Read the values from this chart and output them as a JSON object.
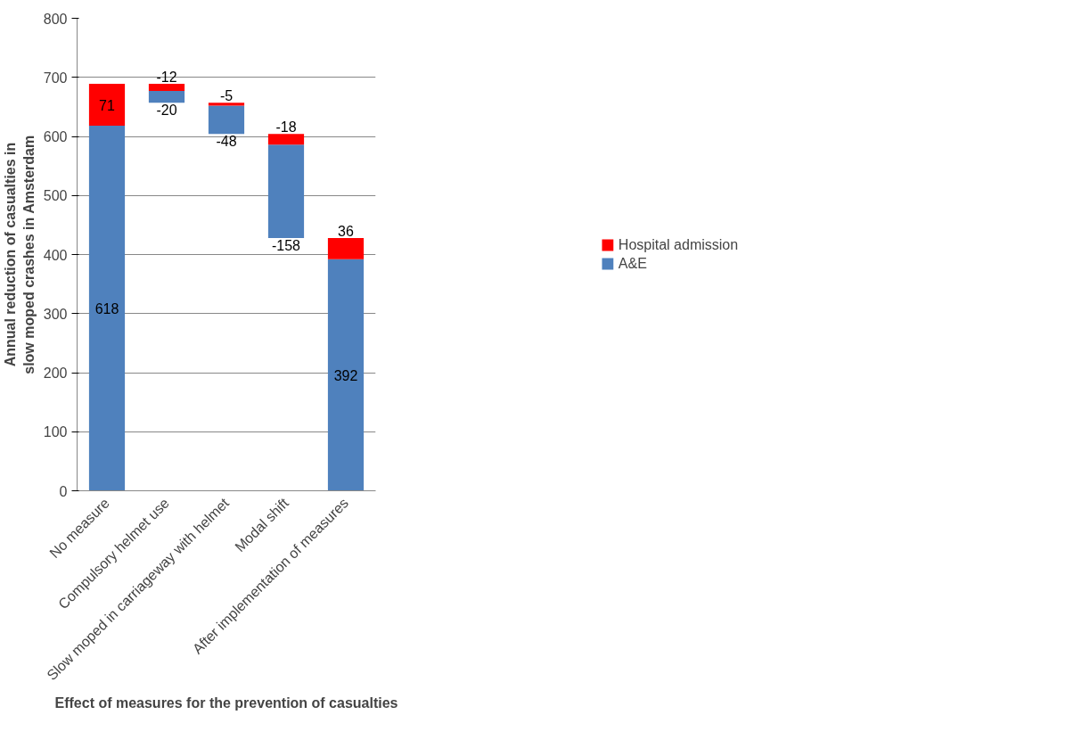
{
  "chart_data": {
    "type": "bar",
    "xlabel": "Effect of measures for the prevention of casualties",
    "ylabel": "Annual reduction of casualties in slow moped crashes in Amsterdam",
    "categories": [
      "No measure",
      "Compulsory helmet use",
      "Slow moped in carriageway with helmet",
      "Modal shift",
      "After implementation of measures"
    ],
    "series": [
      {
        "name": "A&E",
        "color": "#4f81bd",
        "values": [
          618,
          -20,
          -48,
          -158,
          392
        ],
        "base": [
          0,
          677,
          652,
          586,
          0
        ]
      },
      {
        "name": "Hospital admission",
        "color": "#ff0000",
        "values": [
          71,
          -12,
          -5,
          -18,
          36
        ],
        "base": [
          618,
          689,
          657,
          604,
          392
        ]
      }
    ],
    "ylim": [
      0,
      800
    ],
    "yticks": [
      0,
      100,
      200,
      300,
      400,
      500,
      600,
      700,
      800
    ],
    "grid": "y",
    "legend": "right",
    "data_labels": true
  }
}
